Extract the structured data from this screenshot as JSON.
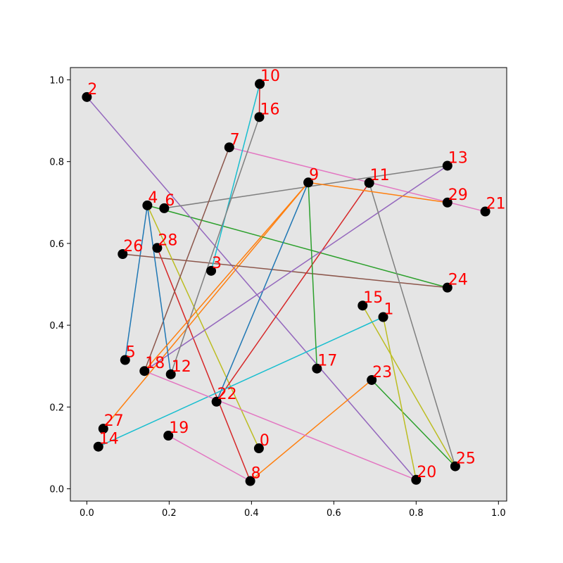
{
  "chart_data": {
    "type": "scatter",
    "title": "",
    "xlabel": "",
    "ylabel": "",
    "xlim": [
      -0.04,
      1.02
    ],
    "ylim": [
      -0.03,
      1.03
    ],
    "xticks": [
      "0.0",
      "0.2",
      "0.4",
      "0.6",
      "0.8",
      "1.0"
    ],
    "yticks": [
      "0.0",
      "0.2",
      "0.4",
      "0.6",
      "0.8",
      "1.0"
    ],
    "grid": false,
    "background": "#e5e5e5",
    "point_color": "#000000",
    "label_color": "#ff0000",
    "nodes": [
      {
        "id": "0",
        "x": 0.418,
        "y": 0.099
      },
      {
        "id": "1",
        "x": 0.72,
        "y": 0.42
      },
      {
        "id": "2",
        "x": 0.0,
        "y": 0.958
      },
      {
        "id": "3",
        "x": 0.302,
        "y": 0.533
      },
      {
        "id": "4",
        "x": 0.147,
        "y": 0.693
      },
      {
        "id": "5",
        "x": 0.093,
        "y": 0.315
      },
      {
        "id": "6",
        "x": 0.188,
        "y": 0.686
      },
      {
        "id": "7",
        "x": 0.346,
        "y": 0.835
      },
      {
        "id": "8",
        "x": 0.397,
        "y": 0.019
      },
      {
        "id": "9",
        "x": 0.538,
        "y": 0.749
      },
      {
        "id": "10",
        "x": 0.42,
        "y": 0.99
      },
      {
        "id": "11",
        "x": 0.686,
        "y": 0.748
      },
      {
        "id": "12",
        "x": 0.204,
        "y": 0.28
      },
      {
        "id": "13",
        "x": 0.876,
        "y": 0.79
      },
      {
        "id": "14",
        "x": 0.028,
        "y": 0.103
      },
      {
        "id": "15",
        "x": 0.67,
        "y": 0.448
      },
      {
        "id": "16",
        "x": 0.419,
        "y": 0.909
      },
      {
        "id": "17",
        "x": 0.559,
        "y": 0.294
      },
      {
        "id": "18",
        "x": 0.14,
        "y": 0.288
      },
      {
        "id": "19",
        "x": 0.198,
        "y": 0.13
      },
      {
        "id": "20",
        "x": 0.8,
        "y": 0.022
      },
      {
        "id": "21",
        "x": 0.968,
        "y": 0.678
      },
      {
        "id": "22",
        "x": 0.315,
        "y": 0.213
      },
      {
        "id": "23",
        "x": 0.692,
        "y": 0.266
      },
      {
        "id": "24",
        "x": 0.876,
        "y": 0.492
      },
      {
        "id": "25",
        "x": 0.895,
        "y": 0.055
      },
      {
        "id": "26",
        "x": 0.087,
        "y": 0.574
      },
      {
        "id": "27",
        "x": 0.04,
        "y": 0.147
      },
      {
        "id": "28",
        "x": 0.171,
        "y": 0.589
      },
      {
        "id": "29",
        "x": 0.876,
        "y": 0.7
      }
    ],
    "edges": [
      {
        "from": "4",
        "to": "5",
        "color": "#1f77b4"
      },
      {
        "from": "27",
        "to": "9",
        "color": "#ff7f0e"
      },
      {
        "from": "4",
        "to": "24",
        "color": "#2ca02c"
      },
      {
        "from": "28",
        "to": "8",
        "color": "#d62728"
      },
      {
        "from": "2",
        "to": "20",
        "color": "#9467bd"
      },
      {
        "from": "26",
        "to": "24",
        "color": "#8c564b"
      },
      {
        "from": "7",
        "to": "21",
        "color": "#e377c2"
      },
      {
        "from": "6",
        "to": "13",
        "color": "#7f7f7f"
      },
      {
        "from": "4",
        "to": "0",
        "color": "#bcbd22"
      },
      {
        "from": "3",
        "to": "10",
        "color": "#17becf"
      },
      {
        "from": "22",
        "to": "9",
        "color": "#1f77b4"
      },
      {
        "from": "8",
        "to": "23",
        "color": "#ff7f0e"
      },
      {
        "from": "23",
        "to": "25",
        "color": "#2ca02c"
      },
      {
        "from": "22",
        "to": "11",
        "color": "#d62728"
      },
      {
        "from": "18",
        "to": "13",
        "color": "#9467bd"
      },
      {
        "from": "18",
        "to": "7",
        "color": "#8c564b"
      },
      {
        "from": "19",
        "to": "8",
        "color": "#e377c2"
      },
      {
        "from": "11",
        "to": "25",
        "color": "#7f7f7f"
      },
      {
        "from": "15",
        "to": "25",
        "color": "#bcbd22"
      },
      {
        "from": "14",
        "to": "1",
        "color": "#17becf"
      },
      {
        "from": "4",
        "to": "12",
        "color": "#1f77b4"
      },
      {
        "from": "9",
        "to": "29",
        "color": "#ff7f0e"
      },
      {
        "from": "9",
        "to": "17",
        "color": "#2ca02c"
      },
      {
        "from": "10",
        "to": "16",
        "color": "#d62728"
      },
      {
        "from": "18",
        "to": "20",
        "color": "#e377c2"
      },
      {
        "from": "12",
        "to": "16",
        "color": "#7f7f7f"
      },
      {
        "from": "1",
        "to": "20",
        "color": "#bcbd22"
      },
      {
        "from": "18",
        "to": "9",
        "color": "#ff7f0e"
      }
    ]
  }
}
